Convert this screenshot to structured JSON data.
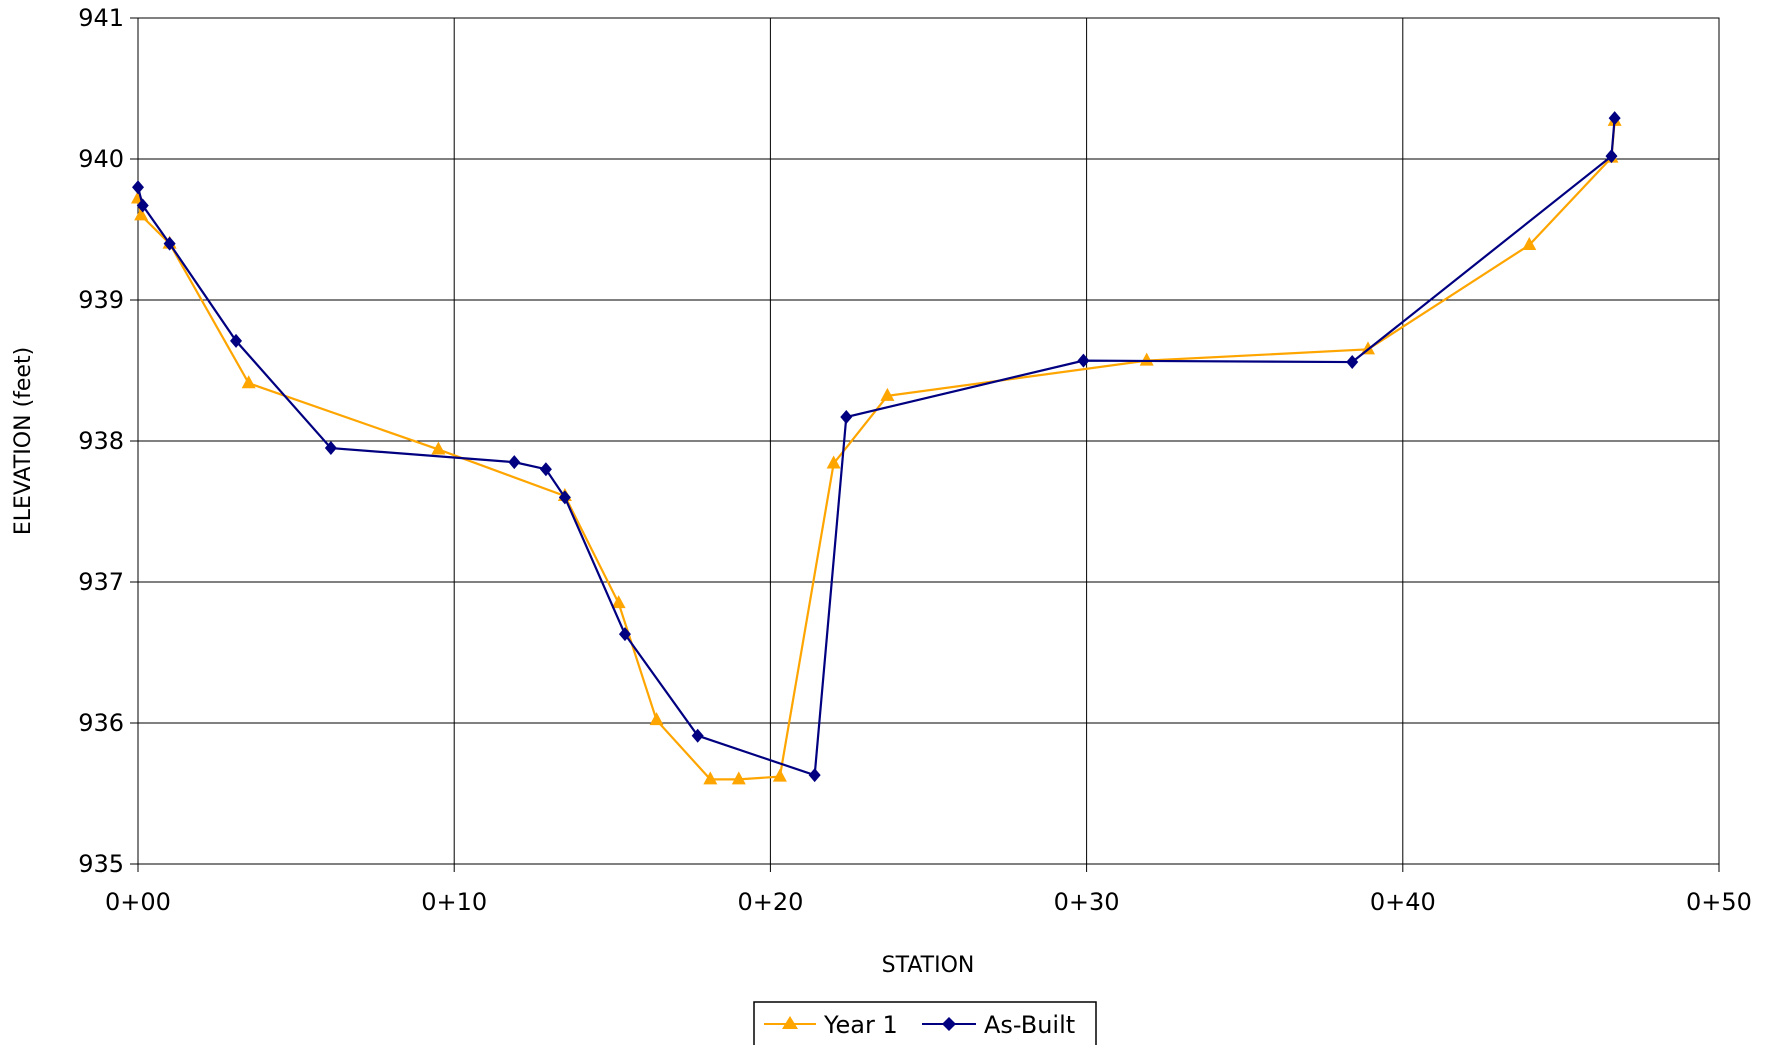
{
  "chart_data": {
    "type": "line",
    "title": "",
    "xlabel": "STATION",
    "ylabel": "ELEVATION (feet)",
    "xlim": [
      0,
      50
    ],
    "ylim": [
      935,
      941
    ],
    "x_ticks": [
      {
        "value": 0,
        "label": "0+00"
      },
      {
        "value": 10,
        "label": "0+10"
      },
      {
        "value": 20,
        "label": "0+20"
      },
      {
        "value": 30,
        "label": "0+30"
      },
      {
        "value": 40,
        "label": "0+40"
      },
      {
        "value": 50,
        "label": "0+50"
      }
    ],
    "y_ticks": [
      {
        "value": 935,
        "label": "935"
      },
      {
        "value": 936,
        "label": "936"
      },
      {
        "value": 937,
        "label": "937"
      },
      {
        "value": 938,
        "label": "938"
      },
      {
        "value": 939,
        "label": "939"
      },
      {
        "value": 940,
        "label": "940"
      },
      {
        "value": 941,
        "label": "941"
      }
    ],
    "grid": true,
    "legend_position": "bottom-center",
    "series": [
      {
        "name": "Year 1",
        "color": "#FFA500",
        "marker": "triangle",
        "points": [
          [
            0.0,
            939.72
          ],
          [
            0.1,
            939.6
          ],
          [
            1.0,
            939.4
          ],
          [
            3.5,
            938.41
          ],
          [
            9.5,
            937.94
          ],
          [
            13.5,
            937.61
          ],
          [
            15.2,
            936.85
          ],
          [
            16.4,
            936.02
          ],
          [
            18.1,
            935.6
          ],
          [
            19.0,
            935.6
          ],
          [
            20.3,
            935.62
          ],
          [
            22.0,
            937.84
          ],
          [
            23.7,
            938.32
          ],
          [
            31.9,
            938.57
          ],
          [
            38.9,
            938.65
          ],
          [
            44.0,
            939.39
          ],
          [
            46.6,
            940.01
          ],
          [
            46.7,
            940.27
          ]
        ]
      },
      {
        "name": "As-Built",
        "color": "#000080",
        "marker": "diamond",
        "points": [
          [
            0.0,
            939.8
          ],
          [
            0.15,
            939.67
          ],
          [
            1.0,
            939.4
          ],
          [
            3.1,
            938.71
          ],
          [
            6.1,
            937.95
          ],
          [
            11.9,
            937.85
          ],
          [
            12.9,
            937.8
          ],
          [
            13.5,
            937.6
          ],
          [
            15.4,
            936.63
          ],
          [
            17.7,
            935.91
          ],
          [
            21.4,
            935.63
          ],
          [
            22.4,
            938.17
          ],
          [
            29.9,
            938.57
          ],
          [
            38.4,
            938.56
          ],
          [
            46.6,
            940.02
          ],
          [
            46.7,
            940.29
          ]
        ]
      }
    ]
  }
}
